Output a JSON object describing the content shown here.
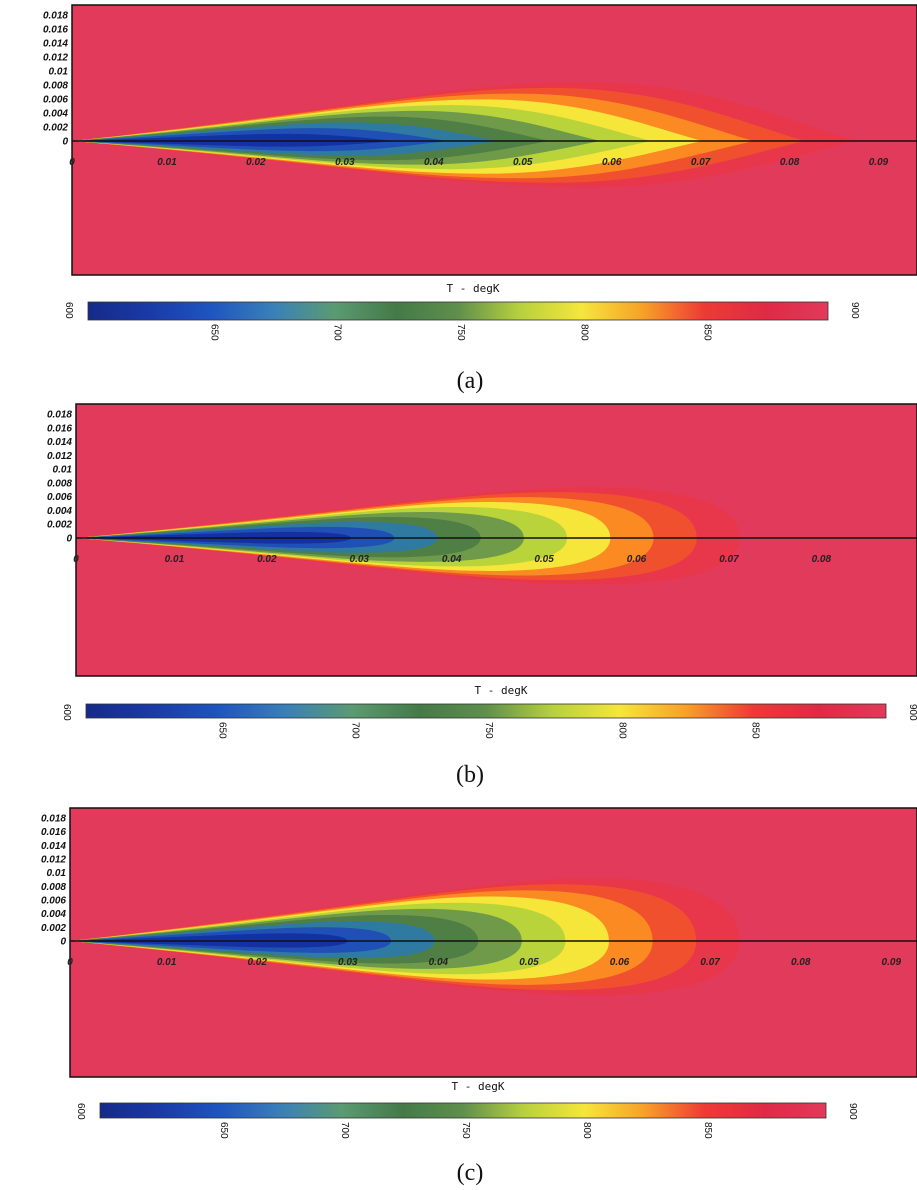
{
  "chart_data": [
    {
      "type": "heatmap",
      "panel_label": "(a)",
      "quantity": "T - degK",
      "y_ticks": [
        "0.018",
        "0.016",
        "0.014",
        "0.012",
        "0.01",
        "0.008",
        "0.006",
        "0.004",
        "0.002",
        "0"
      ],
      "x_ticks": [
        "0",
        "0.01",
        "0.02",
        "0.03",
        "0.04",
        "0.05",
        "0.06",
        "0.07",
        "0.08",
        "0.09"
      ],
      "xlim": [
        0,
        0.095
      ],
      "ylim": [
        -0.015,
        0.0195
      ],
      "colorbar": {
        "range": [
          600,
          900
        ],
        "ticks": [
          "600",
          "650",
          "700",
          "750",
          "800",
          "850",
          "900"
        ]
      },
      "region": {
        "x_start": 0,
        "x_end": 0.084,
        "shape": "lens",
        "x_peak": 0.055,
        "upper_half_width": 0.007,
        "lower_half_width": 0.0055,
        "core_min_T": 610,
        "ambient_T": 900
      }
    },
    {
      "type": "heatmap",
      "panel_label": "(b)",
      "quantity": "T - degK",
      "y_ticks": [
        "0.018",
        "0.016",
        "0.014",
        "0.012",
        "0.01",
        "0.008",
        "0.006",
        "0.004",
        "0.002",
        "0"
      ],
      "x_ticks": [
        "0",
        "0.01",
        "0.02",
        "0.03",
        "0.04",
        "0.05",
        "0.06",
        "0.07",
        "0.08"
      ],
      "xlim": [
        0,
        0.091
      ],
      "ylim": [
        -0.015,
        0.0195
      ],
      "colorbar": {
        "range": [
          600,
          900
        ],
        "ticks": [
          "600",
          "650",
          "700",
          "750",
          "800",
          "850",
          "900"
        ]
      },
      "region": {
        "x_start": 0,
        "x_end": 0.0685,
        "shape": "teardrop",
        "x_peak": 0.053,
        "upper_half_width": 0.006,
        "lower_half_width": 0.0055,
        "core_min_T": 610,
        "ambient_T": 900
      }
    },
    {
      "type": "heatmap",
      "panel_label": "(c)",
      "quantity": "T - degK",
      "y_ticks": [
        "0.018",
        "0.016",
        "0.014",
        "0.012",
        "0.01",
        "0.008",
        "0.006",
        "0.004",
        "0.002",
        "0"
      ],
      "x_ticks": [
        "0",
        "0.01",
        "0.02",
        "0.03",
        "0.04",
        "0.05",
        "0.06",
        "0.07",
        "0.08",
        "0.09"
      ],
      "xlim": [
        0,
        0.0935
      ],
      "ylim": [
        -0.015,
        0.0195
      ],
      "colorbar": {
        "range": [
          600,
          900
        ],
        "ticks": [
          "600",
          "650",
          "700",
          "750",
          "800",
          "850",
          "900"
        ]
      },
      "region": {
        "x_start": 0,
        "x_end": 0.0705,
        "shape": "teardrop",
        "x_peak": 0.055,
        "upper_half_width": 0.0075,
        "lower_half_width": 0.0065,
        "core_min_T": 610,
        "ambient_T": 900
      }
    }
  ],
  "colors": {
    "ambient": "#e23a5a",
    "contour_bands": [
      "#e23a5a",
      "#e8374a",
      "#f0502e",
      "#fb8a22",
      "#f6e63a",
      "#b9d33a",
      "#6e9a4a",
      "#4f7f45",
      "#2f7aa0",
      "#2050b5",
      "#1530a0"
    ],
    "colorbar_stops": [
      "#152a8a",
      "#1a3aa6",
      "#1f55c0",
      "#3a80b8",
      "#5b9a72",
      "#447a48",
      "#5f8f4c",
      "#b7d03e",
      "#f5e63c",
      "#f7a028",
      "#ee3a35",
      "#df2a45",
      "#e23a5a"
    ]
  }
}
